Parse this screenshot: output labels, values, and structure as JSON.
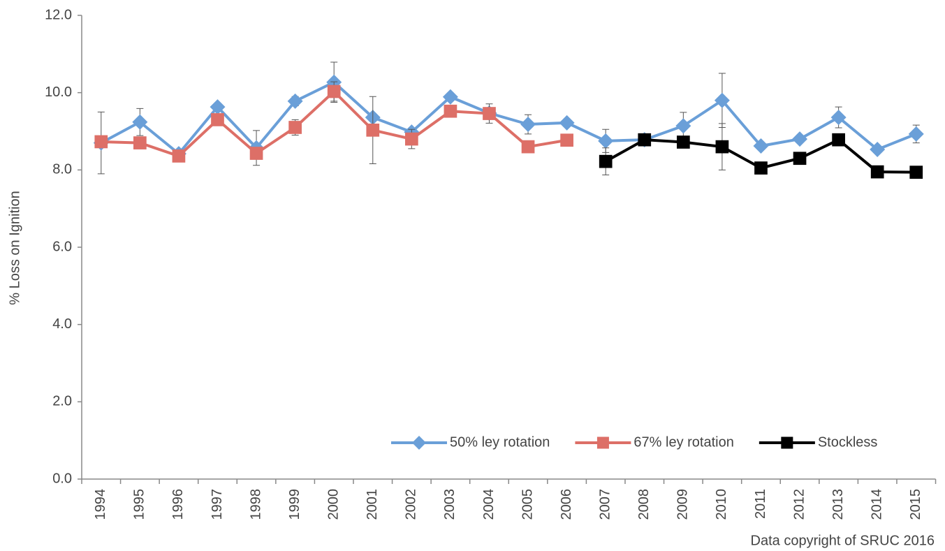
{
  "chart_data": {
    "type": "line",
    "y_label": "% Loss on Ignition",
    "source": "Data copyright of SRUC 2016",
    "categories": [
      "1994",
      "1995",
      "1996",
      "1997",
      "1998",
      "1999",
      "2000",
      "2001",
      "2002",
      "2003",
      "2004",
      "2005",
      "2006",
      "2007",
      "2008",
      "2009",
      "2010",
      "2011",
      "2012",
      "2013",
      "2014",
      "2015"
    ],
    "series": [
      {
        "name": "50% ley rotation",
        "color": "#6a9fd8",
        "marker": "diamond",
        "values": [
          8.7,
          9.24,
          8.42,
          9.63,
          8.57,
          9.78,
          10.27,
          9.36,
          8.98,
          9.89,
          9.47,
          9.18,
          9.22,
          8.75,
          8.78,
          9.14,
          9.8,
          8.62,
          8.8,
          9.36,
          8.53,
          8.93
        ],
        "errors": [
          0.8,
          0.35,
          0.1,
          0.1,
          0.45,
          0.12,
          0.52,
          null,
          0.1,
          0.1,
          0.1,
          0.25,
          null,
          0.3,
          null,
          0.35,
          0.7,
          null,
          null,
          0.27,
          null,
          0.23
        ]
      },
      {
        "name": "67% ley rotation",
        "color": "#dd6f67",
        "marker": "square",
        "values": [
          8.73,
          8.7,
          8.36,
          9.3,
          8.43,
          9.1,
          10.03,
          9.03,
          8.8,
          9.52,
          9.46,
          8.6,
          8.77,
          null,
          null,
          null,
          null,
          null,
          null,
          null,
          null,
          null
        ],
        "errors": [
          null,
          null,
          null,
          null,
          null,
          0.2,
          0.25,
          0.87,
          0.25,
          null,
          0.25,
          null,
          null,
          null,
          null,
          null,
          null,
          null,
          null,
          null,
          null,
          null
        ]
      },
      {
        "name": "Stockless",
        "color": "#000000",
        "marker": "square",
        "values": [
          null,
          null,
          null,
          null,
          null,
          null,
          null,
          null,
          null,
          null,
          null,
          null,
          null,
          8.22,
          8.78,
          8.72,
          8.6,
          8.05,
          8.3,
          8.78,
          7.95,
          7.94
        ],
        "errors": [
          null,
          null,
          null,
          null,
          null,
          null,
          null,
          null,
          null,
          null,
          null,
          null,
          null,
          0.35,
          null,
          null,
          0.6,
          null,
          null,
          null,
          null,
          null
        ]
      }
    ],
    "ylim": [
      0,
      12
    ],
    "yticks": [
      {
        "value": 0,
        "label": "0.0"
      },
      {
        "value": 2,
        "label": "2.0"
      },
      {
        "value": 4,
        "label": "4.0"
      },
      {
        "value": 6,
        "label": "6.0"
      },
      {
        "value": 8,
        "label": "8.0"
      },
      {
        "value": 10,
        "label": "10.0"
      },
      {
        "value": 12,
        "label": "12.0"
      }
    ],
    "grid": false,
    "legend": "bottom-right"
  }
}
